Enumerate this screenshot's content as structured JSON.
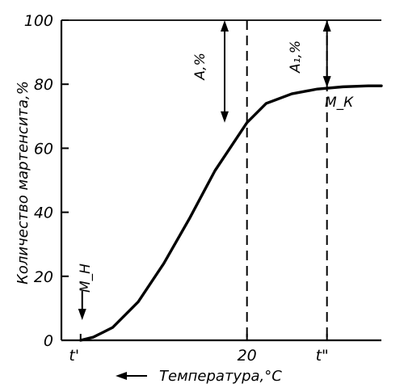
{
  "chart_data": {
    "type": "line",
    "title": "",
    "xlabel": "Температура,°C",
    "ylabel": "Количество мартенсита,%",
    "x_axis_note": "decreasing temperature to the right",
    "xlim": [
      0,
      100
    ],
    "ylim": [
      0,
      100
    ],
    "y_ticks": [
      "0",
      "20",
      "40",
      "60",
      "80",
      "100"
    ],
    "x_ticks": [
      {
        "label": "t'",
        "value": 6
      },
      {
        "label": "20",
        "value": 58
      },
      {
        "label": "t\"",
        "value": 83
      }
    ],
    "series": [
      {
        "name": "",
        "x": [
          6,
          10,
          16,
          24,
          32,
          40,
          48,
          56,
          58,
          64,
          72,
          80,
          88,
          96,
          100
        ],
        "y": [
          0,
          1,
          4,
          12,
          24,
          38,
          53,
          65,
          68,
          74,
          77,
          78.5,
          79.2,
          79.5,
          79.5
        ]
      }
    ],
    "grid": false,
    "legend": "none",
    "annotations": {
      "ms_label": "M_Н",
      "mk_label": "M_К",
      "a_label": "A,%",
      "a1_label": "A₁,%",
      "start_arrow_label": "M_Н",
      "x_direction_arrow": "left"
    }
  }
}
